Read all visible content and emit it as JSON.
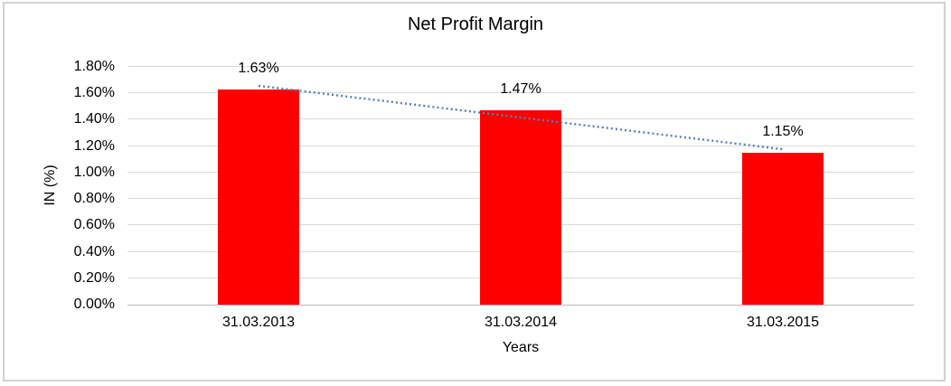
{
  "window": {
    "background_color": "#ffffff",
    "frame_border_color": "#d2d2d2"
  },
  "chart_data": {
    "type": "bar",
    "title": "Net Profit Margin",
    "xlabel": "Years",
    "ylabel": "IN (%)",
    "categories": [
      "31.03.2013",
      "31.03.2014",
      "31.03.2015"
    ],
    "values": [
      1.63,
      1.47,
      1.15
    ],
    "data_labels": [
      "1.63%",
      "1.47%",
      "1.15%"
    ],
    "ylim": [
      0,
      1.8
    ],
    "ytick_step": 0.2,
    "ytick_labels": [
      "0.00%",
      "0.20%",
      "0.40%",
      "0.60%",
      "0.80%",
      "1.00%",
      "1.20%",
      "1.40%",
      "1.60%",
      "1.80%"
    ],
    "grid": true,
    "legend": "none",
    "bar_color": "#ff0000",
    "gridline_color": "#d9d9d9",
    "axis_line_color": "#b9b9b9",
    "text_color": "#000000",
    "trendline": {
      "type": "linear",
      "style": "dotted",
      "color": "#4f81bd"
    }
  }
}
